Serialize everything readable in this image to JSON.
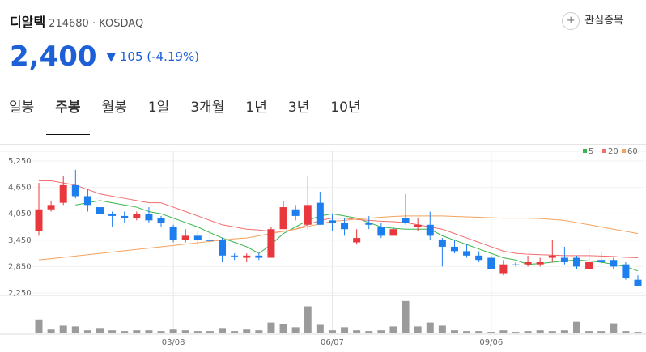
{
  "header": {
    "name": "디알텍",
    "code": "214680",
    "market": "KOSDAQ",
    "watch": "관심종목",
    "price": "2,400",
    "change": "105",
    "change_pct": "(-4.19%)"
  },
  "tabs": [
    "일봉",
    "주봉",
    "월봉",
    "1일",
    "3개월",
    "1년",
    "3년",
    "10년"
  ],
  "selected_tab": 1,
  "chart_data": {
    "type": "candlestick",
    "up_color": "#e8383d",
    "down_color": "#1d7ef0",
    "categories": [
      null,
      null,
      null,
      null,
      null,
      null,
      null,
      null,
      null,
      null,
      null,
      "03/08",
      null,
      null,
      null,
      null,
      null,
      null,
      null,
      null,
      null,
      null,
      null,
      null,
      "06/07",
      null,
      null,
      null,
      null,
      null,
      null,
      null,
      null,
      null,
      null,
      null,
      null,
      "09/06",
      null,
      null,
      null,
      null,
      null,
      null,
      null,
      null,
      null,
      null,
      null,
      null
    ],
    "open": [
      3650,
      4150,
      4300,
      4700,
      4450,
      4200,
      4050,
      4000,
      3950,
      4050,
      3950,
      3750,
      3450,
      3550,
      3450,
      3450,
      3100,
      3050,
      3100,
      3050,
      3700,
      4150,
      3800,
      4300,
      3900,
      3850,
      3400,
      3850,
      3750,
      3550,
      3950,
      3750,
      3800,
      3450,
      3300,
      3200,
      3100,
      3050,
      2700,
      2900,
      2900,
      2900,
      3050,
      3050,
      3050,
      2800,
      3000,
      3000,
      2900,
      2550
    ],
    "high": [
      4750,
      4350,
      4900,
      5050,
      4600,
      4300,
      4100,
      4100,
      4100,
      4200,
      4000,
      3800,
      3700,
      3650,
      3700,
      3500,
      3150,
      3150,
      3150,
      3750,
      4350,
      4250,
      4900,
      4550,
      4050,
      3950,
      3700,
      4000,
      3850,
      3750,
      4500,
      3950,
      4100,
      3500,
      3450,
      3350,
      3200,
      3100,
      3000,
      2950,
      3100,
      3050,
      3450,
      3300,
      3100,
      3250,
      3200,
      3050,
      2950,
      2650
    ],
    "low": [
      3550,
      4100,
      4250,
      4400,
      4100,
      3950,
      3750,
      3850,
      3900,
      3850,
      3750,
      3400,
      3400,
      3350,
      3350,
      2950,
      3000,
      2950,
      3000,
      3050,
      3700,
      3900,
      3700,
      3800,
      3650,
      3550,
      3350,
      3700,
      3500,
      3550,
      3800,
      3650,
      3450,
      2850,
      3150,
      3050,
      2950,
      2800,
      2650,
      2850,
      2850,
      2850,
      2950,
      2900,
      2800,
      2800,
      2900,
      2800,
      2550,
      2400
    ],
    "close": [
      4150,
      4250,
      4700,
      4450,
      4250,
      4050,
      4000,
      3950,
      4050,
      3900,
      3850,
      3450,
      3550,
      3450,
      3440,
      3100,
      3090,
      3100,
      3050,
      3700,
      4200,
      4000,
      4250,
      3800,
      3850,
      3700,
      3500,
      3800,
      3550,
      3700,
      3850,
      3800,
      3550,
      3300,
      3200,
      3100,
      3000,
      2800,
      2900,
      2890,
      2950,
      2950,
      3100,
      2950,
      2850,
      2950,
      2950,
      2850,
      2600,
      2400
    ],
    "ylim": [
      2250,
      5250
    ],
    "yticks": [
      {
        "value": 2250,
        "label": "2,250"
      },
      {
        "value": 2850,
        "label": "2,850"
      },
      {
        "value": 3450,
        "label": "3,450"
      },
      {
        "value": 4050,
        "label": "4,050"
      },
      {
        "value": 4650,
        "label": "4,650"
      },
      {
        "value": 5250,
        "label": "5,250"
      }
    ],
    "series": [
      {
        "name": "5",
        "color": "#39b54a",
        "values": [
          null,
          null,
          null,
          4250,
          4300,
          4350,
          4300,
          4250,
          4200,
          4100,
          4050,
          3950,
          3850,
          3750,
          3620,
          3500,
          3400,
          3300,
          3150,
          3350,
          3600,
          3750,
          3900,
          4000,
          4050,
          4000,
          3950,
          3850,
          3750,
          3720,
          3700,
          3700,
          3700,
          3550,
          3450,
          3350,
          3250,
          3150,
          3050,
          3000,
          2900,
          2920,
          2950,
          2980,
          3000,
          2980,
          2950,
          2900,
          2850,
          2750
        ]
      },
      {
        "name": "20",
        "color": "#f26d6d",
        "values": [
          4800,
          4800,
          4750,
          4700,
          4600,
          4500,
          4450,
          4400,
          4350,
          4300,
          4300,
          4200,
          4100,
          4000,
          3900,
          3800,
          3750,
          3700,
          3680,
          3650,
          3650,
          3700,
          3800,
          3900,
          3950,
          3950,
          3920,
          3900,
          3880,
          3870,
          3850,
          3800,
          3750,
          3700,
          3600,
          3500,
          3400,
          3300,
          3200,
          3150,
          3130,
          3120,
          3110,
          3100,
          3100,
          3100,
          3090,
          3080,
          3060,
          3050
        ]
      },
      {
        "name": "60",
        "color": "#f5a25d",
        "values": [
          3000,
          3030,
          3060,
          3090,
          3120,
          3150,
          3180,
          3210,
          3240,
          3270,
          3300,
          3330,
          3360,
          3390,
          3420,
          3450,
          3480,
          3500,
          3550,
          3600,
          3650,
          3700,
          3760,
          3820,
          3880,
          3900,
          3930,
          3950,
          3970,
          3990,
          4000,
          4000,
          4000,
          4000,
          3990,
          3980,
          3970,
          3960,
          3950,
          3950,
          3950,
          3940,
          3920,
          3900,
          3850,
          3800,
          3750,
          3700,
          3650,
          3600
        ]
      }
    ],
    "volume": [
      18,
      5,
      10,
      9,
      4,
      7,
      4,
      3,
      4,
      4,
      3,
      5,
      4,
      3,
      3,
      7,
      3,
      5,
      4,
      14,
      12,
      8,
      35,
      11,
      4,
      8,
      4,
      3,
      4,
      9,
      42,
      9,
      14,
      10,
      4,
      3,
      3,
      2,
      4,
      2,
      3,
      4,
      3,
      4,
      15,
      3,
      3,
      13,
      3,
      2
    ],
    "vlim": [
      0,
      46
    ],
    "volume_color": "#9b9b9b"
  }
}
